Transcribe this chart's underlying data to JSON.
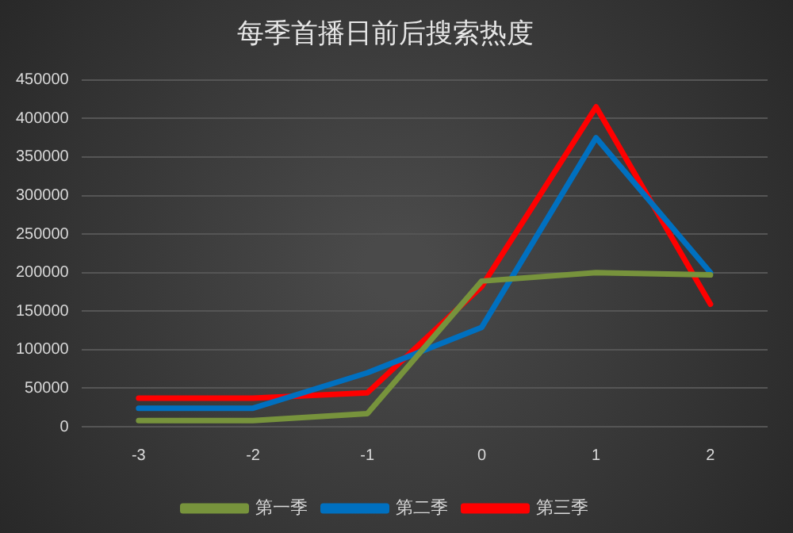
{
  "chart_data": {
    "type": "line",
    "title": "每季首播日前后搜索热度",
    "categories": [
      "-3",
      "-2",
      "-1",
      "0",
      "1",
      "2"
    ],
    "series": [
      {
        "name": "第一季",
        "color": "#77933c",
        "values": [
          8000,
          8000,
          17000,
          189000,
          200000,
          197000
        ]
      },
      {
        "name": "第二季",
        "color": "#0070c0",
        "values": [
          24000,
          24000,
          70000,
          129000,
          375000,
          200000
        ]
      },
      {
        "name": "第三季",
        "color": "#ff0000",
        "values": [
          37000,
          37000,
          44000,
          182000,
          415000,
          159000
        ]
      }
    ],
    "ylim": [
      0,
      450000
    ],
    "yticks": [
      0,
      50000,
      100000,
      150000,
      200000,
      250000,
      300000,
      350000,
      400000,
      450000
    ],
    "grid": "y",
    "legend": "bottom",
    "marker": "none",
    "line_style": "solid"
  }
}
